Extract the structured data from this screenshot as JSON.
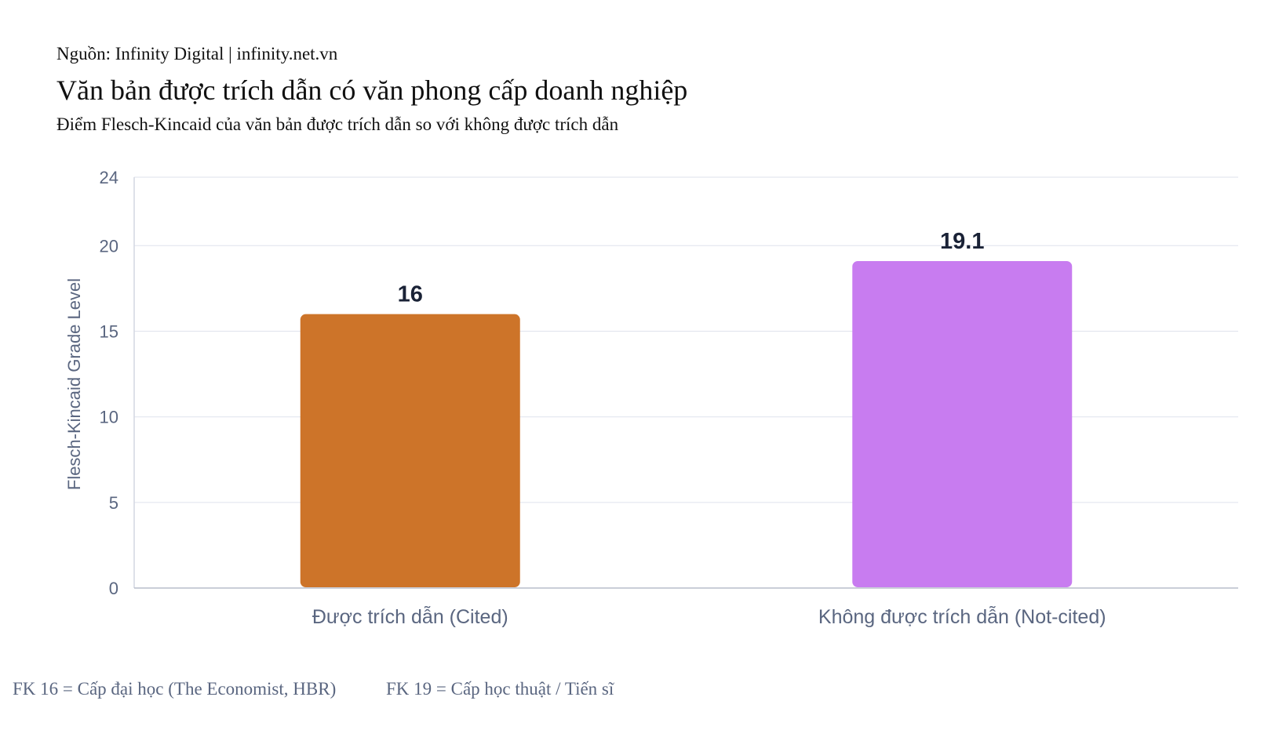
{
  "header": {
    "source": "Nguồn: Infinity Digital | infinity.net.vn",
    "title": "Văn bản được trích dẫn có văn phong cấp doanh nghiệp",
    "subtitle": "Điểm Flesch-Kincaid của văn bản được trích dẫn so với không được trích dẫn"
  },
  "chart_data": {
    "type": "bar",
    "categories": [
      "Được trích dẫn (Cited)",
      "Không được trích dẫn (Not-cited)"
    ],
    "values": [
      16,
      19.1
    ],
    "value_labels": [
      "16",
      "19.1"
    ],
    "colors": [
      "#cd7429",
      "#c87cf0"
    ],
    "ylabel": "Flesch-Kincaid Grade Level",
    "ylim": [
      0,
      24
    ],
    "yticks": [
      0,
      5,
      10,
      15,
      20,
      24
    ],
    "grid": true
  },
  "footnotes": [
    "FK 16 = Cấp đại học (The Economist, HBR)",
    "FK 19 = Cấp học thuật / Tiến sĩ"
  ]
}
